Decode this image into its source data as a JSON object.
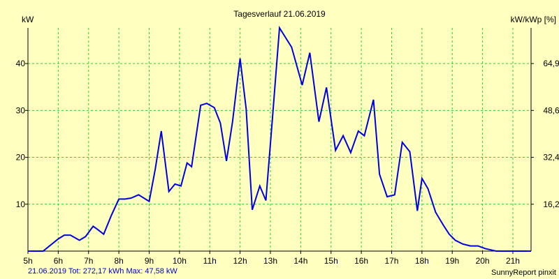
{
  "chart_data": {
    "type": "line",
    "title": "Tagesverlauf 21.06.2019",
    "ylabel_left": "kW",
    "ylabel_right": "kW/kWp [%]",
    "x_tick_labels": [
      "5h",
      "6h",
      "7h",
      "8h",
      "9h",
      "10h",
      "11h",
      "12h",
      "13h",
      "14h",
      "15h",
      "16h",
      "17h",
      "18h",
      "19h",
      "20h",
      "21h"
    ],
    "y_ticks_left": [
      10,
      20,
      30,
      40
    ],
    "y_ticks_right": [
      "16,2",
      "32,4",
      "48,6",
      "64,9"
    ],
    "xlim": [
      5,
      21.6
    ],
    "ylim": [
      0,
      47.6
    ],
    "grid": true,
    "colors": {
      "background": "#ffffc0",
      "plot": "#ffffc0",
      "grid": "#33cc33",
      "line": "#0000dd",
      "axis": "#000000"
    },
    "series": [
      {
        "x": [
          5.0,
          5.5,
          6.0,
          6.2,
          6.4,
          6.7,
          6.9,
          7.15,
          7.3,
          7.5,
          7.75,
          8.0,
          8.2,
          8.4,
          8.65,
          9.0,
          9.2,
          9.4,
          9.65,
          9.85,
          10.05,
          10.25,
          10.4,
          10.7,
          10.9,
          11.15,
          11.35,
          11.55,
          11.75,
          12.0,
          12.2,
          12.4,
          12.65,
          12.85,
          13.05,
          13.3,
          13.7,
          14.05,
          14.3,
          14.6,
          14.85,
          15.15,
          15.4,
          15.65,
          15.9,
          16.1,
          16.4,
          16.6,
          16.85,
          17.1,
          17.35,
          17.6,
          17.85,
          18.0,
          18.2,
          18.45,
          18.7,
          18.9,
          19.1,
          19.35,
          19.6,
          19.85,
          20.1,
          20.45,
          20.75,
          20.95,
          21.15,
          21.6
        ],
        "y": [
          0.0,
          0.0,
          2.6,
          3.4,
          3.4,
          2.3,
          3.1,
          5.3,
          4.6,
          3.6,
          7.6,
          11.1,
          11.1,
          11.3,
          12.0,
          10.6,
          17.5,
          25.6,
          12.7,
          14.3,
          13.9,
          18.8,
          18.0,
          31.1,
          31.5,
          30.6,
          27.3,
          19.2,
          27.6,
          41.1,
          30.3,
          8.8,
          13.9,
          10.8,
          27.0,
          47.6,
          43.5,
          35.4,
          42.3,
          27.6,
          34.9,
          21.5,
          24.6,
          21.0,
          25.6,
          24.6,
          32.3,
          16.4,
          11.6,
          12.0,
          23.2,
          21.2,
          8.6,
          15.5,
          13.3,
          8.3,
          5.6,
          3.6,
          2.3,
          1.5,
          1.1,
          1.1,
          0.5,
          0.0,
          0.0,
          0.0,
          0.0,
          0.0
        ]
      }
    ],
    "footer_left": "21.06.2019 Tot: 272,17 kWh Max: 47,58 kW",
    "footer_right": "SunnyReport pinxit"
  }
}
